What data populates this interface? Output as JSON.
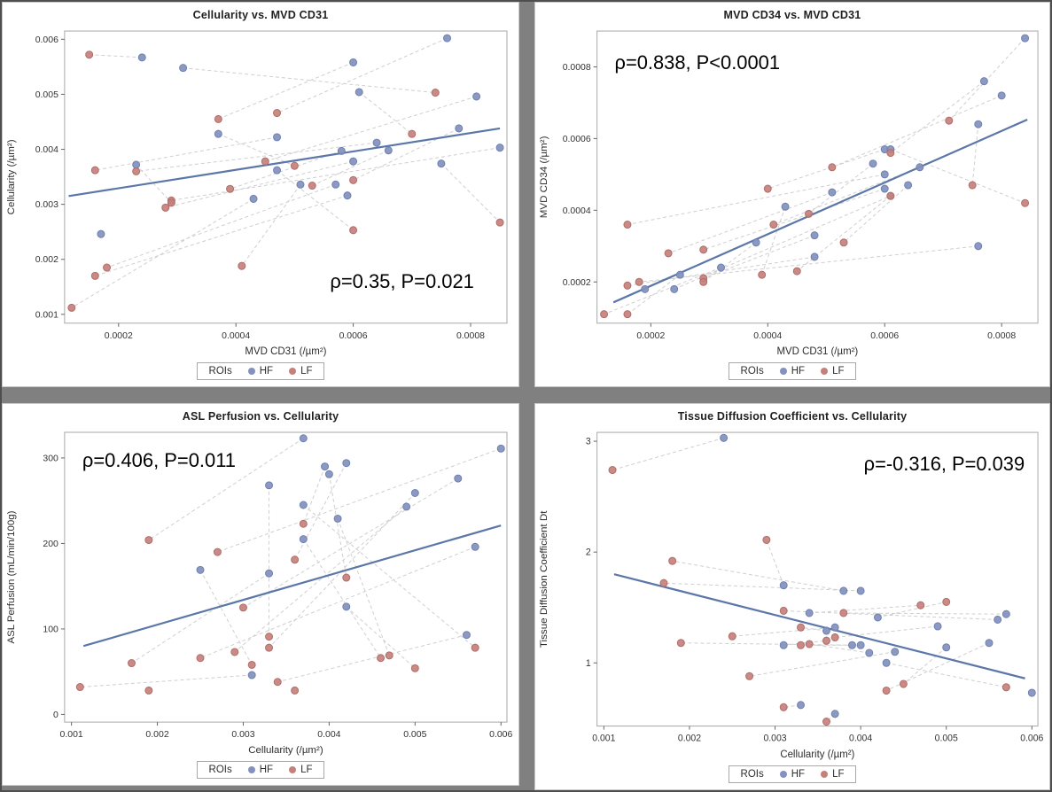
{
  "page": {
    "background_color": "#808080",
    "outer_border_color": "#4e4e4e",
    "panel_background": "#ffffff"
  },
  "style": {
    "frame_color": "#a8a8a8",
    "tick_color": "#666666",
    "connector_color": "#cfcfcf",
    "regression_color": "#5b77a8",
    "title_color": "#1f1f1f",
    "hf_color": "#8291be",
    "lf_color": "#c6807c"
  },
  "legend": {
    "title": "ROIs",
    "items": [
      {
        "label": "HF",
        "color": "#8291be"
      },
      {
        "label": "LF",
        "color": "#c6807c"
      }
    ]
  },
  "chart_data": [
    {
      "type": "scatter",
      "panel": "top-left",
      "title": "Cellularity vs. MVD CD31",
      "xlabel": "MVD CD31 (/µm²)",
      "ylabel": "Cellularity (/µm²)",
      "xlim": [
        0.000108,
        0.000862
      ],
      "ylim": [
        0.00084,
        0.00615
      ],
      "xticks": [
        "0.0002",
        "0.0004",
        "0.0006",
        "0.0008"
      ],
      "yticks": [
        "0.001",
        "0.002",
        "0.003",
        "0.004",
        "0.005",
        "0.006"
      ],
      "annotation": {
        "text": "ρ=0.35, P=0.021",
        "fx": 0.6,
        "fy": 0.88,
        "anchor": "start"
      },
      "regression": {
        "x": [
          0.000115,
          0.00085
        ],
        "y": [
          0.00315,
          0.00438
        ]
      },
      "connector_style": "dashed-pair-by-index",
      "series": [
        {
          "name": "HF",
          "color": "#8291be",
          "stroke": "#6d80ae",
          "points": [
            [
              0.00024,
              0.00567
            ],
            [
              0.00031,
              0.00548
            ],
            [
              0.00076,
              0.00602
            ],
            [
              0.0006,
              0.00558
            ],
            [
              0.00061,
              0.00504
            ],
            [
              0.00081,
              0.00496
            ],
            [
              0.00037,
              0.00428
            ],
            [
              0.00047,
              0.00422
            ],
            [
              0.00064,
              0.00412
            ],
            [
              0.00078,
              0.00438
            ],
            [
              0.00066,
              0.00398
            ],
            [
              0.00058,
              0.00397
            ],
            [
              0.00085,
              0.00403
            ],
            [
              0.00023,
              0.00372
            ],
            [
              0.0006,
              0.00378
            ],
            [
              0.00075,
              0.00374
            ],
            [
              0.00047,
              0.00362
            ],
            [
              0.00051,
              0.00336
            ],
            [
              0.00057,
              0.00336
            ],
            [
              0.00059,
              0.00316
            ],
            [
              0.00043,
              0.0031
            ],
            [
              0.00017,
              0.00246
            ]
          ]
        },
        {
          "name": "LF",
          "color": "#c6807c",
          "stroke": "#b06c68",
          "points": [
            [
              0.00015,
              0.00572
            ],
            [
              0.00074,
              0.00503
            ],
            [
              0.00047,
              0.00466
            ],
            [
              0.00037,
              0.00455
            ],
            [
              0.0007,
              0.00428
            ],
            [
              0.00045,
              0.00378
            ],
            [
              0.0005,
              0.0037
            ],
            [
              0.00016,
              0.00362
            ],
            [
              0.00023,
              0.0036
            ],
            [
              0.0006,
              0.00344
            ],
            [
              0.00053,
              0.00334
            ],
            [
              0.00039,
              0.00328
            ],
            [
              0.00029,
              0.00307
            ],
            [
              0.00029,
              0.00303
            ],
            [
              0.00028,
              0.00294
            ],
            [
              0.00085,
              0.00267
            ],
            [
              0.0006,
              0.00253
            ],
            [
              0.00041,
              0.00188
            ],
            [
              0.00018,
              0.00185
            ],
            [
              0.00016,
              0.0017
            ],
            [
              0.00012,
              0.00112
            ]
          ]
        }
      ]
    },
    {
      "type": "scatter",
      "panel": "top-right",
      "title": "MVD CD34 vs. MVD CD31",
      "xlabel": "MVD CD31 (/µm²)",
      "ylabel": "MVD CD34 (/µm²)",
      "xlim": [
        0.000108,
        0.000862
      ],
      "ylim": [
        8.5e-05,
        0.0009
      ],
      "xticks": [
        "0.0002",
        "0.0004",
        "0.0006",
        "0.0008"
      ],
      "yticks": [
        "0.0002",
        "0.0004",
        "0.0006",
        "0.0008"
      ],
      "annotation": {
        "text": "ρ=0.838, P<0.0001",
        "fx": 0.04,
        "fy": 0.13,
        "anchor": "start"
      },
      "regression": {
        "x": [
          0.000136,
          0.000844
        ],
        "y": [
          0.000143,
          0.000653
        ]
      },
      "connector_style": "dashed-pair-by-index",
      "series": [
        {
          "name": "HF",
          "color": "#8291be",
          "stroke": "#6d80ae",
          "points": [
            [
              0.00084,
              0.00088
            ],
            [
              0.00077,
              0.00076
            ],
            [
              0.0008,
              0.00072
            ],
            [
              0.00076,
              0.00064
            ],
            [
              0.0006,
              0.00057
            ],
            [
              0.00061,
              0.00057
            ],
            [
              0.00058,
              0.00053
            ],
            [
              0.00066,
              0.00052
            ],
            [
              0.0006,
              0.0005
            ],
            [
              0.00064,
              0.00047
            ],
            [
              0.0006,
              0.00046
            ],
            [
              0.00051,
              0.00045
            ],
            [
              0.00061,
              0.00044
            ],
            [
              0.00043,
              0.00041
            ],
            [
              0.00048,
              0.00033
            ],
            [
              0.00038,
              0.00031
            ],
            [
              0.00076,
              0.0003
            ],
            [
              0.00048,
              0.00027
            ],
            [
              0.00032,
              0.00024
            ],
            [
              0.00025,
              0.00022
            ],
            [
              0.00024,
              0.00018
            ],
            [
              0.00019,
              0.00018
            ]
          ]
        },
        {
          "name": "LF",
          "color": "#c6807c",
          "stroke": "#b06c68",
          "points": [
            [
              0.00071,
              0.00065
            ],
            [
              0.00061,
              0.00056
            ],
            [
              0.00051,
              0.00052
            ],
            [
              0.00075,
              0.00047
            ],
            [
              0.0004,
              0.00046
            ],
            [
              0.00084,
              0.00042
            ],
            [
              0.00047,
              0.00039
            ],
            [
              0.00041,
              0.00036
            ],
            [
              0.00016,
              0.00036
            ],
            [
              0.00053,
              0.00031
            ],
            [
              0.00029,
              0.00029
            ],
            [
              0.00023,
              0.00028
            ],
            [
              0.00045,
              0.00023
            ],
            [
              0.00039,
              0.00022
            ],
            [
              0.00029,
              0.00021
            ],
            [
              0.00029,
              0.0002
            ],
            [
              0.00018,
              0.0002
            ],
            [
              0.00016,
              0.00019
            ],
            [
              0.00012,
              0.00011
            ],
            [
              0.00016,
              0.00011
            ],
            [
              0.00061,
              0.00044
            ]
          ]
        }
      ]
    },
    {
      "type": "scatter",
      "panel": "bottom-left",
      "title": "ASL Perfusion vs. Cellularity",
      "xlabel": "Cellularity (/µm²)",
      "ylabel": "ASL Perfusion (mL/min/100g)",
      "xlim": [
        0.00092,
        0.00607
      ],
      "ylim": [
        -9,
        330
      ],
      "xticks": [
        "0.001",
        "0.002",
        "0.003",
        "0.004",
        "0.005",
        "0.006"
      ],
      "yticks": [
        "0",
        "100",
        "200",
        "300"
      ],
      "annotation": {
        "text": "ρ=0.406, P=0.011",
        "fx": 0.04,
        "fy": 0.12,
        "anchor": "start"
      },
      "regression": {
        "x": [
          0.00114,
          0.006
        ],
        "y": [
          80,
          221
        ]
      },
      "connector_style": "dashed-pair-by-index",
      "series": [
        {
          "name": "HF",
          "color": "#8291be",
          "stroke": "#6d80ae",
          "points": [
            [
              0.0037,
              323
            ],
            [
              0.006,
              311
            ],
            [
              0.00395,
              290
            ],
            [
              0.0042,
              294
            ],
            [
              0.004,
              281
            ],
            [
              0.0055,
              276
            ],
            [
              0.0033,
              268
            ],
            [
              0.005,
              259
            ],
            [
              0.0037,
              245
            ],
            [
              0.0049,
              243
            ],
            [
              0.0041,
              229
            ],
            [
              0.0037,
              205
            ],
            [
              0.0057,
              196
            ],
            [
              0.0025,
              169
            ],
            [
              0.0033,
              165
            ],
            [
              0.0042,
              126
            ],
            [
              0.0056,
              93
            ],
            [
              0.0031,
              46
            ]
          ]
        },
        {
          "name": "LF",
          "color": "#c6807c",
          "stroke": "#b06c68",
          "points": [
            [
              0.0019,
              204
            ],
            [
              0.0027,
              190
            ],
            [
              0.0037,
              223
            ],
            [
              0.0036,
              181
            ],
            [
              0.0042,
              160
            ],
            [
              0.003,
              125
            ],
            [
              0.0033,
              91
            ],
            [
              0.0033,
              78
            ],
            [
              0.0057,
              78
            ],
            [
              0.0029,
              73
            ],
            [
              0.0047,
              69
            ],
            [
              0.0046,
              66
            ],
            [
              0.0025,
              66
            ],
            [
              0.0031,
              58
            ],
            [
              0.0017,
              60
            ],
            [
              0.005,
              54
            ],
            [
              0.0034,
              38
            ],
            [
              0.0011,
              32
            ],
            [
              0.0019,
              28
            ],
            [
              0.0036,
              28
            ]
          ]
        }
      ]
    },
    {
      "type": "scatter",
      "panel": "bottom-right",
      "title": "Tissue Diffusion Coefficient vs. Cellularity",
      "xlabel": "Cellularity (/µm²)",
      "ylabel": "Tissue Diffusion Coefficient Dt",
      "xlim": [
        0.00092,
        0.00607
      ],
      "ylim": [
        0.43,
        3.08
      ],
      "xticks": [
        "0.001",
        "0.002",
        "0.003",
        "0.004",
        "0.005",
        "0.006"
      ],
      "yticks": [
        "1",
        "2",
        "3"
      ],
      "annotation": {
        "text": "ρ=-0.316, P=0.039",
        "fx": 0.97,
        "fy": 0.13,
        "anchor": "end"
      },
      "regression": {
        "x": [
          0.00112,
          0.00592
        ],
        "y": [
          1.8,
          0.86
        ]
      },
      "connector_style": "dashed-pair-by-index",
      "series": [
        {
          "name": "HF",
          "color": "#8291be",
          "stroke": "#6d80ae",
          "points": [
            [
              0.0024,
              3.03
            ],
            [
              0.0031,
              1.7
            ],
            [
              0.0038,
              1.65
            ],
            [
              0.004,
              1.65
            ],
            [
              0.0034,
              1.45
            ],
            [
              0.0042,
              1.41
            ],
            [
              0.0056,
              1.39
            ],
            [
              0.0057,
              1.44
            ],
            [
              0.0036,
              1.29
            ],
            [
              0.0037,
              1.32
            ],
            [
              0.0049,
              1.33
            ],
            [
              0.0031,
              1.16
            ],
            [
              0.0039,
              1.16
            ],
            [
              0.004,
              1.16
            ],
            [
              0.0041,
              1.09
            ],
            [
              0.0044,
              1.1
            ],
            [
              0.005,
              1.14
            ],
            [
              0.0055,
              1.18
            ],
            [
              0.0043,
              1.0
            ],
            [
              0.0033,
              0.62
            ],
            [
              0.0037,
              0.54
            ],
            [
              0.006,
              0.73
            ]
          ]
        },
        {
          "name": "LF",
          "color": "#c6807c",
          "stroke": "#b06c68",
          "points": [
            [
              0.0011,
              2.74
            ],
            [
              0.0029,
              2.11
            ],
            [
              0.0018,
              1.92
            ],
            [
              0.0017,
              1.72
            ],
            [
              0.0047,
              1.52
            ],
            [
              0.005,
              1.55
            ],
            [
              0.0031,
              1.47
            ],
            [
              0.0038,
              1.45
            ],
            [
              0.0033,
              1.32
            ],
            [
              0.0025,
              1.24
            ],
            [
              0.0037,
              1.23
            ],
            [
              0.0036,
              1.2
            ],
            [
              0.0019,
              1.18
            ],
            [
              0.0033,
              1.16
            ],
            [
              0.0034,
              1.17
            ],
            [
              0.0027,
              0.88
            ],
            [
              0.0045,
              0.81
            ],
            [
              0.0043,
              0.75
            ],
            [
              0.0057,
              0.78
            ],
            [
              0.0031,
              0.6
            ],
            [
              0.0036,
              0.47
            ]
          ]
        }
      ]
    }
  ]
}
